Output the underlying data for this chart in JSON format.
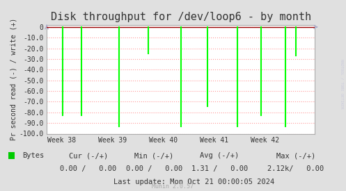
{
  "title": "Disk throughput for /dev/loop6 - by month",
  "ylabel": "Pr second read (-) / write (+)",
  "ylim": [
    -100,
    2
  ],
  "yticks": [
    0,
    -10,
    -20,
    -30,
    -40,
    -50,
    -60,
    -70,
    -80,
    -90,
    -100
  ],
  "ytick_labels": [
    "0",
    "-10.0",
    "-20.0",
    "-30.0",
    "-40.0",
    "-50.0",
    "-60.0",
    "-70.0",
    "-80.0",
    "-90.0",
    "-100.0"
  ],
  "xtick_labels": [
    "Week 38",
    "Week 39",
    "Week 40",
    "Week 41",
    "Week 42"
  ],
  "xtick_positions": [
    0.055,
    0.245,
    0.435,
    0.625,
    0.815
  ],
  "bg_color": "#e0e0e0",
  "plot_bg_color": "#ffffff",
  "grid_color": "#ff9999",
  "line_color": "#00ff00",
  "zero_line_color": "#990000",
  "border_color": "#aaaaaa",
  "spike_x": [
    0.06,
    0.13,
    0.27,
    0.38,
    0.5,
    0.6,
    0.71,
    0.8,
    0.89,
    0.93
  ],
  "spike_y": [
    -83,
    -83,
    -93,
    -25,
    -93,
    -74,
    -93,
    -83,
    -93,
    -27
  ],
  "legend_label": "Bytes",
  "legend_color": "#00cc00",
  "footer_update": "Last update: Mon Oct 21 00:00:05 2024",
  "footer_munin": "Munin 2.0.57",
  "watermark": "RRDTOOL / TOBI OETIKER",
  "arrow_color": "#aaaacc",
  "title_fontsize": 11,
  "tick_fontsize": 7,
  "footer_fontsize": 7.5
}
